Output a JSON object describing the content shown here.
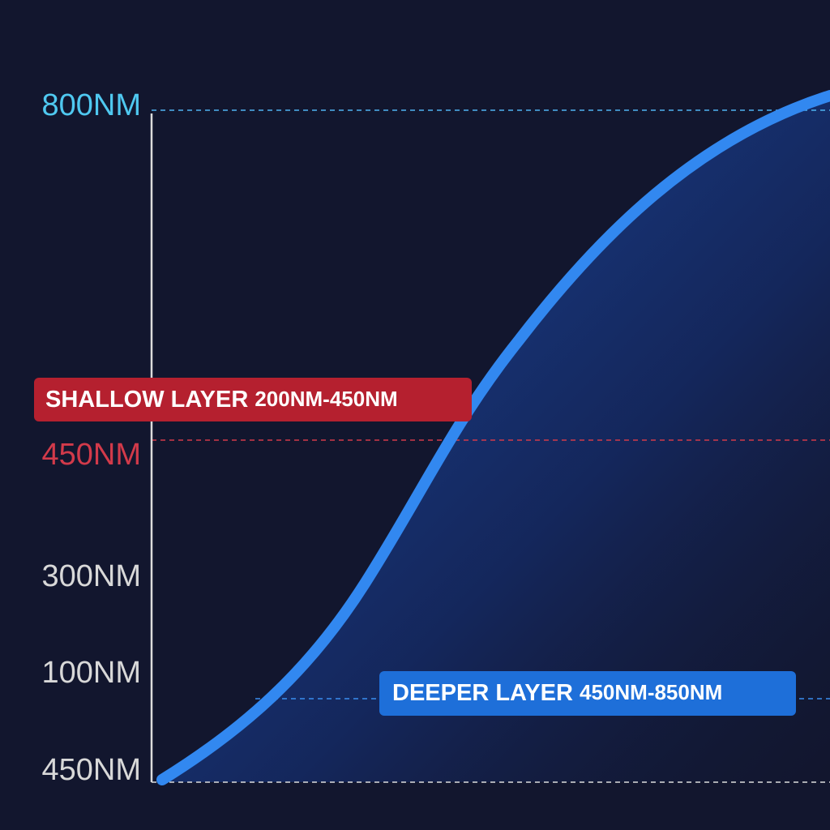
{
  "axis_labels": [
    "800NM",
    "450NM",
    "300NM",
    "100NM",
    "450NM"
  ],
  "badges": [
    {
      "title": "SHALLOW LAYER",
      "range": "200NM-450NM"
    },
    {
      "title": "DEEPER LAYER",
      "range": "450NM-850NM"
    }
  ]
}
